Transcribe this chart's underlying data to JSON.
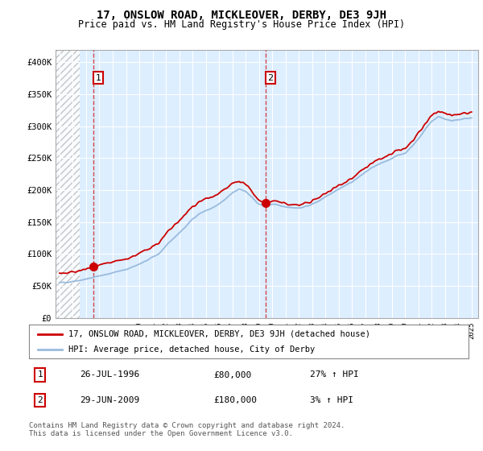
{
  "title": "17, ONSLOW ROAD, MICKLEOVER, DERBY, DE3 9JH",
  "subtitle": "Price paid vs. HM Land Registry's House Price Index (HPI)",
  "ylim": [
    0,
    420000
  ],
  "yticks": [
    0,
    50000,
    100000,
    150000,
    200000,
    250000,
    300000,
    350000,
    400000
  ],
  "ytick_labels": [
    "£0",
    "£50K",
    "£100K",
    "£150K",
    "£200K",
    "£250K",
    "£300K",
    "£350K",
    "£400K"
  ],
  "xlim_start": 1993.7,
  "xlim_end": 2025.5,
  "sale1_year": 1996.55,
  "sale1_price": 80000,
  "sale1_label": "1",
  "sale2_year": 2009.5,
  "sale2_price": 180000,
  "sale2_label": "2",
  "red_color": "#cc0000",
  "blue_color": "#99bbdd",
  "bg_blue": "#ddeeff",
  "hatch_bg": "#e8e8e8",
  "legend_label1": "17, ONSLOW ROAD, MICKLEOVER, DERBY, DE3 9JH (detached house)",
  "legend_label2": "HPI: Average price, detached house, City of Derby",
  "footer": "Contains HM Land Registry data © Crown copyright and database right 2024.\nThis data is licensed under the Open Government Licence v3.0.",
  "table_rows": [
    [
      "1",
      "26-JUL-1996",
      "£80,000",
      "27% ↑ HPI"
    ],
    [
      "2",
      "29-JUN-2009",
      "£180,000",
      "3% ↑ HPI"
    ]
  ]
}
